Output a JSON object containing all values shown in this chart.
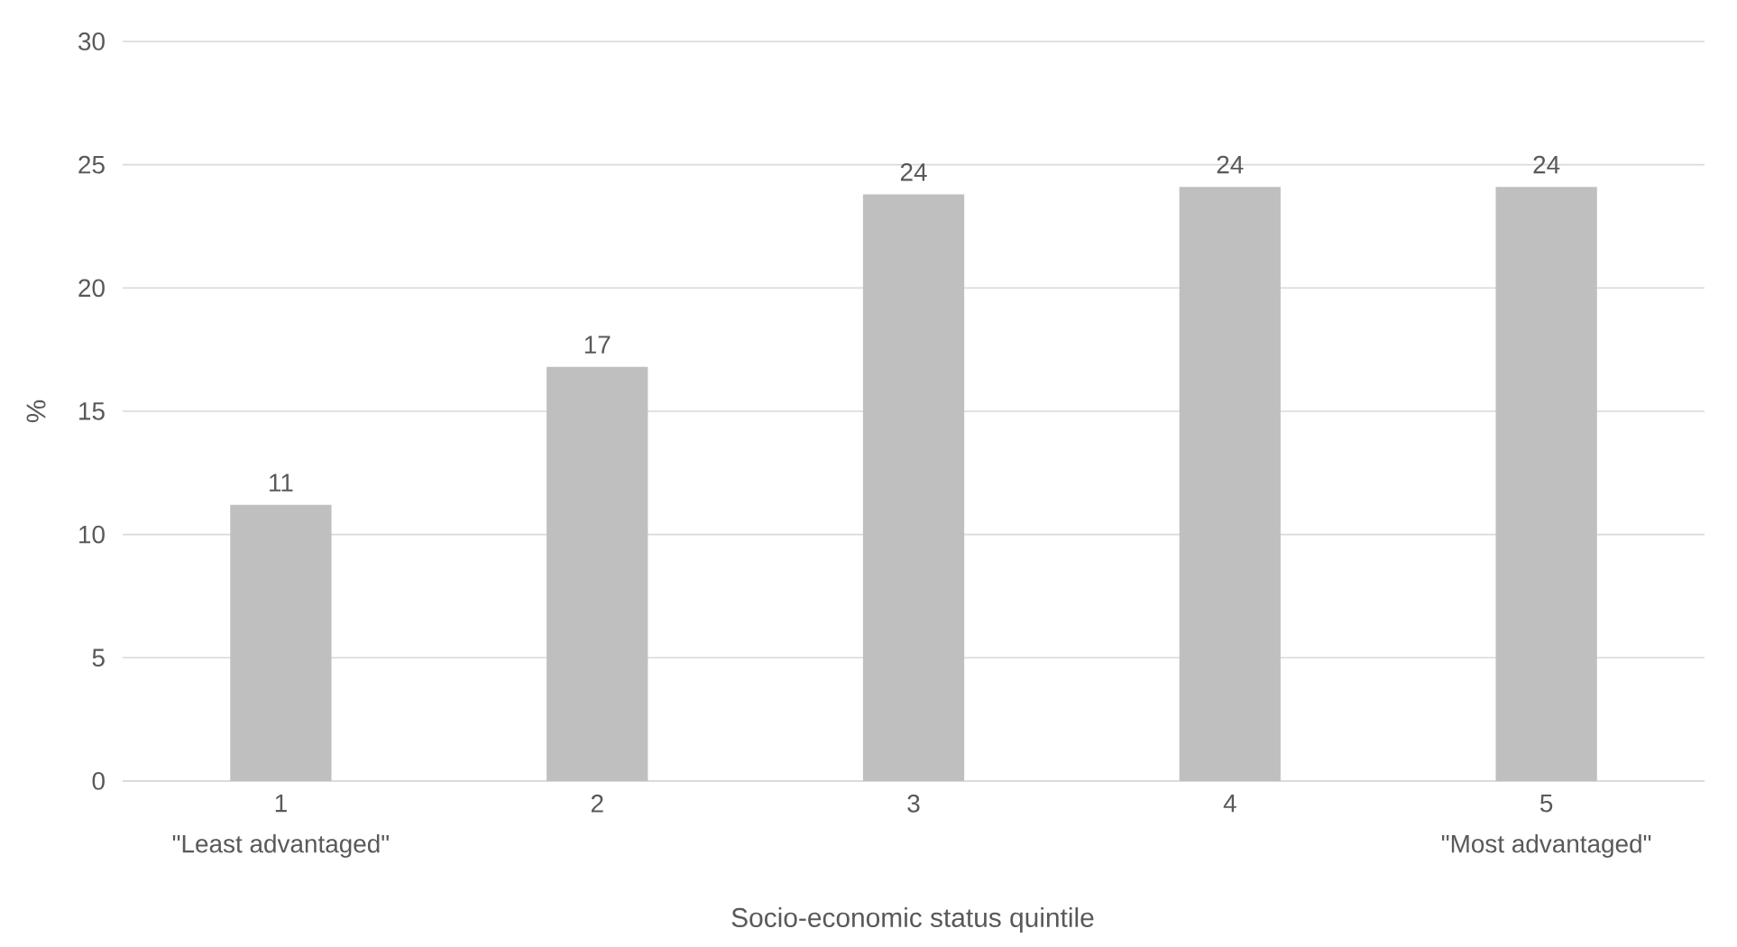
{
  "chart_data": {
    "type": "bar",
    "xlabel": "Socio-economic status quintile",
    "ylabel": "%",
    "categories": [
      "1",
      "2",
      "3",
      "4",
      "5"
    ],
    "values": [
      11.2,
      16.8,
      23.8,
      24.1,
      24.1
    ],
    "value_labels": [
      "11",
      "17",
      "24",
      "24",
      "24"
    ],
    "color": "#bfbfbf",
    "ylim": [
      0,
      30
    ],
    "yticks": [
      0,
      5,
      10,
      15,
      20,
      25,
      30
    ],
    "grid": "y",
    "annotations": [
      "\"Least advantaged\"",
      "\"Most advantaged\""
    ]
  }
}
